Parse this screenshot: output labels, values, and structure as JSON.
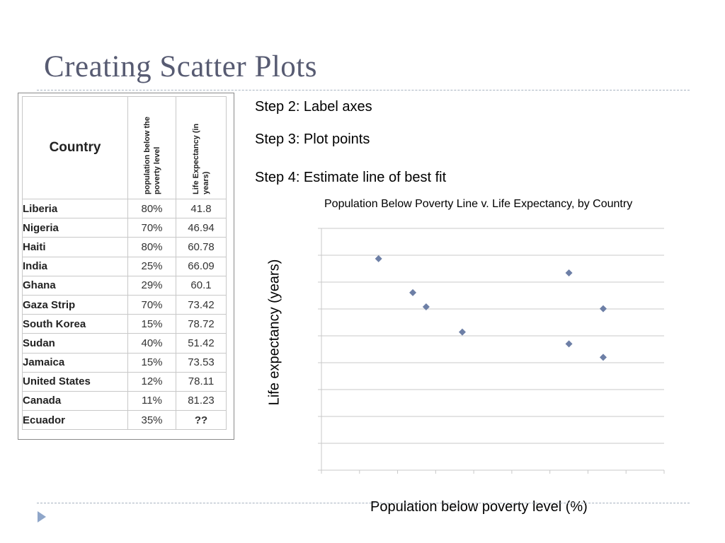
{
  "slide": {
    "title": "Creating Scatter Plots"
  },
  "table": {
    "headers": {
      "country": "Country",
      "poverty": "population below the poverty level",
      "life": "Life Expectancy (in years)"
    },
    "rows": [
      {
        "country": "Liberia",
        "poverty": "80%",
        "life": "41.8"
      },
      {
        "country": "Nigeria",
        "poverty": "70%",
        "life": "46.94"
      },
      {
        "country": "Haiti",
        "poverty": "80%",
        "life": "60.78"
      },
      {
        "country": "India",
        "poverty": "25%",
        "life": "66.09"
      },
      {
        "country": "Ghana",
        "poverty": "29%",
        "life": "60.1"
      },
      {
        "country": "Gaza Strip",
        "poverty": "70%",
        "life": "73.42"
      },
      {
        "country": "South Korea",
        "poverty": "15%",
        "life": "78.72"
      },
      {
        "country": "Sudan",
        "poverty": "40%",
        "life": "51.42"
      },
      {
        "country": "Jamaica",
        "poverty": "15%",
        "life": "73.53"
      },
      {
        "country": "United States",
        "poverty": "12%",
        "life": "78.11"
      },
      {
        "country": "Canada",
        "poverty": "11%",
        "life": "81.23"
      },
      {
        "country": "Ecuador",
        "poverty": "35%",
        "life": "??"
      }
    ]
  },
  "steps": {
    "step2": "Step 2: Label axes",
    "step3": "Step 3: Plot points",
    "step4": "Step 4: Estimate line of best fit"
  },
  "chart_data": {
    "type": "scatter",
    "title": "Population Below Poverty Line v. Life Expectancy, by Country",
    "xlabel": "Population below poverty level (%)",
    "ylabel": "Life expectancy (years)",
    "xlim": [
      0,
      90
    ],
    "ylim": [
      0,
      90
    ],
    "x_ticks_labeled": false,
    "y_ticks_labeled": false,
    "grid": "horizontal",
    "marker": "diamond",
    "marker_color": "#6d7fa6",
    "grid_color": "#c8c8c8",
    "points": [
      {
        "x": 15,
        "y": 78.72
      },
      {
        "x": 24,
        "y": 66.09
      },
      {
        "x": 27.5,
        "y": 60.78
      },
      {
        "x": 37,
        "y": 51.42
      },
      {
        "x": 65,
        "y": 73.42
      },
      {
        "x": 65,
        "y": 47
      },
      {
        "x": 74,
        "y": 60.1
      },
      {
        "x": 74,
        "y": 42
      }
    ]
  }
}
